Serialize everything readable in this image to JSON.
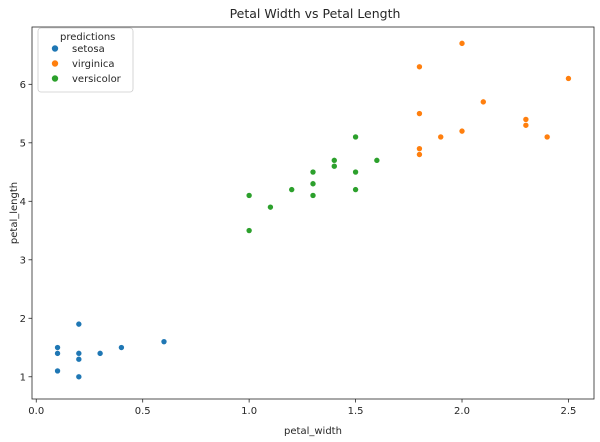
{
  "chart_data": {
    "type": "scatter",
    "title": "Petal Width vs Petal Length",
    "xlabel": "petal_width",
    "ylabel": "petal_length",
    "xlim": [
      -0.02,
      2.62
    ],
    "ylim": [
      0.62,
      6.98
    ],
    "xticks": [
      0.0,
      0.5,
      1.0,
      1.5,
      2.0,
      2.5
    ],
    "xtick_labels": [
      "0.0",
      "0.5",
      "1.0",
      "1.5",
      "2.0",
      "2.5"
    ],
    "yticks": [
      1,
      2,
      3,
      4,
      5,
      6
    ],
    "ytick_labels": [
      "1",
      "2",
      "3",
      "4",
      "5",
      "6"
    ],
    "grid": false,
    "legend": {
      "title": "predictions",
      "placement": "top-left"
    },
    "series": [
      {
        "name": "setosa",
        "color": "#1f77b4",
        "points": [
          [
            0.1,
            1.5
          ],
          [
            0.1,
            1.4
          ],
          [
            0.1,
            1.1
          ],
          [
            0.2,
            1.9
          ],
          [
            0.2,
            1.4
          ],
          [
            0.2,
            1.3
          ],
          [
            0.2,
            1.0
          ],
          [
            0.3,
            1.4
          ],
          [
            0.4,
            1.5
          ],
          [
            0.6,
            1.6
          ]
        ]
      },
      {
        "name": "virginica",
        "color": "#ff7f0e",
        "points": [
          [
            1.8,
            6.3
          ],
          [
            1.8,
            5.5
          ],
          [
            1.8,
            4.9
          ],
          [
            1.8,
            4.8
          ],
          [
            1.9,
            5.1
          ],
          [
            2.0,
            6.7
          ],
          [
            2.0,
            5.2
          ],
          [
            2.1,
            5.7
          ],
          [
            2.3,
            5.4
          ],
          [
            2.3,
            5.3
          ],
          [
            2.4,
            5.1
          ],
          [
            2.5,
            6.1
          ]
        ]
      },
      {
        "name": "versicolor",
        "color": "#2ca02c",
        "points": [
          [
            1.0,
            4.1
          ],
          [
            1.0,
            3.5
          ],
          [
            1.1,
            3.9
          ],
          [
            1.2,
            4.2
          ],
          [
            1.3,
            4.5
          ],
          [
            1.3,
            4.3
          ],
          [
            1.3,
            4.1
          ],
          [
            1.4,
            4.7
          ],
          [
            1.4,
            4.6
          ],
          [
            1.5,
            5.1
          ],
          [
            1.5,
            4.5
          ],
          [
            1.5,
            4.2
          ],
          [
            1.6,
            4.7
          ]
        ]
      }
    ]
  }
}
